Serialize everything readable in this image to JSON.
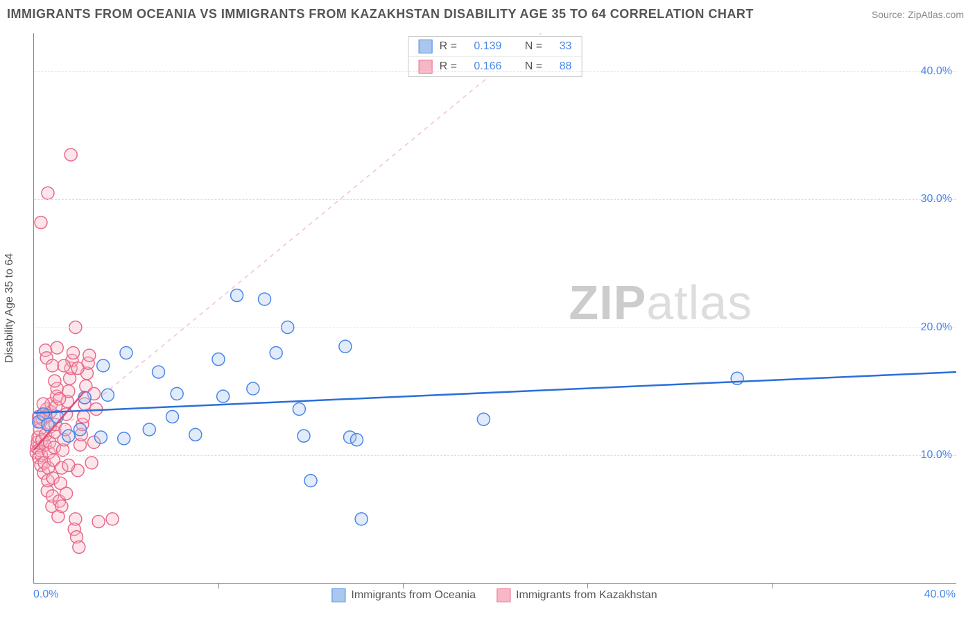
{
  "header": {
    "title": "IMMIGRANTS FROM OCEANIA VS IMMIGRANTS FROM KAZAKHSTAN DISABILITY AGE 35 TO 64 CORRELATION CHART",
    "source": "Source: ZipAtlas.com"
  },
  "watermark": {
    "prefix": "ZIP",
    "suffix": "atlas"
  },
  "chart": {
    "type": "scatter",
    "y_title": "Disability Age 35 to 64",
    "xlim": [
      0,
      40
    ],
    "ylim": [
      0,
      43
    ],
    "x_tick_step": 8,
    "x_label_min": "0.0%",
    "x_label_max": "40.0%",
    "y_ticks": [
      10,
      20,
      30,
      40
    ],
    "y_tick_labels": [
      "10.0%",
      "20.0%",
      "30.0%",
      "40.0%"
    ],
    "grid_color": "#dddddd",
    "axis_color": "#888888",
    "background_color": "#ffffff",
    "marker_radius": 9,
    "marker_stroke_width": 1.5,
    "fill_opacity": 0.35,
    "font_family": "Arial",
    "tick_label_color": "#4a86e8",
    "title_fontsize": 18,
    "label_fontsize": 16
  },
  "series": [
    {
      "name": "Immigrants from Oceania",
      "fill": "#a9c7ef",
      "stroke": "#4a86e8",
      "r_label": "R =",
      "r_value": "0.139",
      "n_label": "N =",
      "n_value": "33",
      "trend": {
        "type": "solid",
        "dash": "",
        "color": "#2a6fdb",
        "width": 2.5,
        "x1": 0,
        "y1": 13.3,
        "x2": 40,
        "y2": 16.5
      },
      "points": [
        [
          0.2,
          12.6
        ],
        [
          0.4,
          13.2
        ],
        [
          0.6,
          12.4
        ],
        [
          1.0,
          13.0
        ],
        [
          1.5,
          11.5
        ],
        [
          2.0,
          12.0
        ],
        [
          2.2,
          14.5
        ],
        [
          2.9,
          11.4
        ],
        [
          3.0,
          17.0
        ],
        [
          3.2,
          14.7
        ],
        [
          3.9,
          11.3
        ],
        [
          4.0,
          18.0
        ],
        [
          5.0,
          12.0
        ],
        [
          5.4,
          16.5
        ],
        [
          6.0,
          13.0
        ],
        [
          6.2,
          14.8
        ],
        [
          7.0,
          11.6
        ],
        [
          8.0,
          17.5
        ],
        [
          8.2,
          14.6
        ],
        [
          8.8,
          22.5
        ],
        [
          9.5,
          15.2
        ],
        [
          10.0,
          22.2
        ],
        [
          10.5,
          18.0
        ],
        [
          11.0,
          20.0
        ],
        [
          11.5,
          13.6
        ],
        [
          11.7,
          11.5
        ],
        [
          12.0,
          8.0
        ],
        [
          13.5,
          18.5
        ],
        [
          13.7,
          11.4
        ],
        [
          14.0,
          11.2
        ],
        [
          14.2,
          5.0
        ],
        [
          19.5,
          12.8
        ],
        [
          30.5,
          16.0
        ]
      ]
    },
    {
      "name": "Immigrants from Kazakhstan",
      "fill": "#f6b8c7",
      "stroke": "#e86a8a",
      "r_label": "R =",
      "r_value": "0.166",
      "n_label": "N =",
      "n_value": "88",
      "trend": {
        "type": "solid",
        "dash": "",
        "color": "#e04b72",
        "width": 2.5,
        "x1": 0,
        "y1": 10.4,
        "x2": 2.2,
        "y2": 15.0
      },
      "identity_line": {
        "dash": "6 6",
        "color": "#f4c1cf",
        "width": 1.5,
        "x1": 0.5,
        "y1": 11,
        "x2": 22,
        "y2": 43
      },
      "points": [
        [
          0.1,
          10.2
        ],
        [
          0.12,
          10.6
        ],
        [
          0.15,
          11.0
        ],
        [
          0.18,
          11.4
        ],
        [
          0.2,
          9.8
        ],
        [
          0.22,
          10.4
        ],
        [
          0.25,
          12.0
        ],
        [
          0.28,
          12.6
        ],
        [
          0.3,
          9.2
        ],
        [
          0.32,
          10.0
        ],
        [
          0.35,
          11.2
        ],
        [
          0.38,
          12.8
        ],
        [
          0.4,
          13.2
        ],
        [
          0.42,
          8.6
        ],
        [
          0.45,
          9.4
        ],
        [
          0.48,
          10.8
        ],
        [
          0.5,
          11.6
        ],
        [
          0.52,
          13.0
        ],
        [
          0.55,
          13.6
        ],
        [
          0.58,
          7.2
        ],
        [
          0.6,
          8.0
        ],
        [
          0.62,
          9.0
        ],
        [
          0.65,
          10.2
        ],
        [
          0.68,
          11.0
        ],
        [
          0.7,
          12.2
        ],
        [
          0.72,
          13.4
        ],
        [
          0.75,
          14.0
        ],
        [
          0.78,
          6.0
        ],
        [
          0.8,
          6.8
        ],
        [
          0.82,
          8.2
        ],
        [
          0.85,
          9.6
        ],
        [
          0.88,
          10.6
        ],
        [
          0.9,
          11.8
        ],
        [
          0.92,
          12.4
        ],
        [
          0.95,
          13.8
        ],
        [
          0.98,
          14.6
        ],
        [
          1.0,
          15.2
        ],
        [
          1.05,
          5.2
        ],
        [
          1.1,
          6.4
        ],
        [
          1.15,
          7.8
        ],
        [
          1.2,
          9.0
        ],
        [
          1.25,
          10.4
        ],
        [
          1.3,
          11.2
        ],
        [
          1.35,
          12.0
        ],
        [
          1.4,
          13.2
        ],
        [
          1.45,
          14.2
        ],
        [
          1.5,
          15.0
        ],
        [
          1.55,
          16.0
        ],
        [
          1.6,
          16.8
        ],
        [
          1.65,
          17.4
        ],
        [
          1.7,
          18.0
        ],
        [
          1.75,
          4.2
        ],
        [
          1.8,
          5.0
        ],
        [
          1.85,
          3.6
        ],
        [
          1.9,
          8.8
        ],
        [
          1.95,
          2.8
        ],
        [
          2.0,
          10.8
        ],
        [
          2.05,
          11.6
        ],
        [
          2.1,
          12.4
        ],
        [
          2.15,
          13.0
        ],
        [
          2.2,
          14.0
        ],
        [
          2.25,
          15.4
        ],
        [
          2.3,
          16.4
        ],
        [
          2.35,
          17.2
        ],
        [
          2.4,
          17.8
        ],
        [
          2.5,
          9.4
        ],
        [
          2.6,
          11.0
        ],
        [
          2.7,
          13.6
        ],
        [
          2.8,
          4.8
        ],
        [
          0.5,
          18.2
        ],
        [
          0.55,
          17.6
        ],
        [
          0.8,
          17.0
        ],
        [
          1.0,
          18.4
        ],
        [
          1.3,
          17.0
        ],
        [
          1.9,
          16.8
        ],
        [
          0.3,
          28.2
        ],
        [
          0.6,
          30.5
        ],
        [
          1.6,
          33.5
        ],
        [
          1.8,
          20.0
        ],
        [
          2.6,
          14.8
        ],
        [
          0.2,
          13.0
        ],
        [
          0.4,
          14.0
        ],
        [
          0.9,
          15.8
        ],
        [
          1.1,
          14.4
        ],
        [
          1.5,
          9.2
        ],
        [
          3.4,
          5.0
        ],
        [
          1.2,
          6.0
        ],
        [
          1.4,
          7.0
        ]
      ]
    }
  ]
}
